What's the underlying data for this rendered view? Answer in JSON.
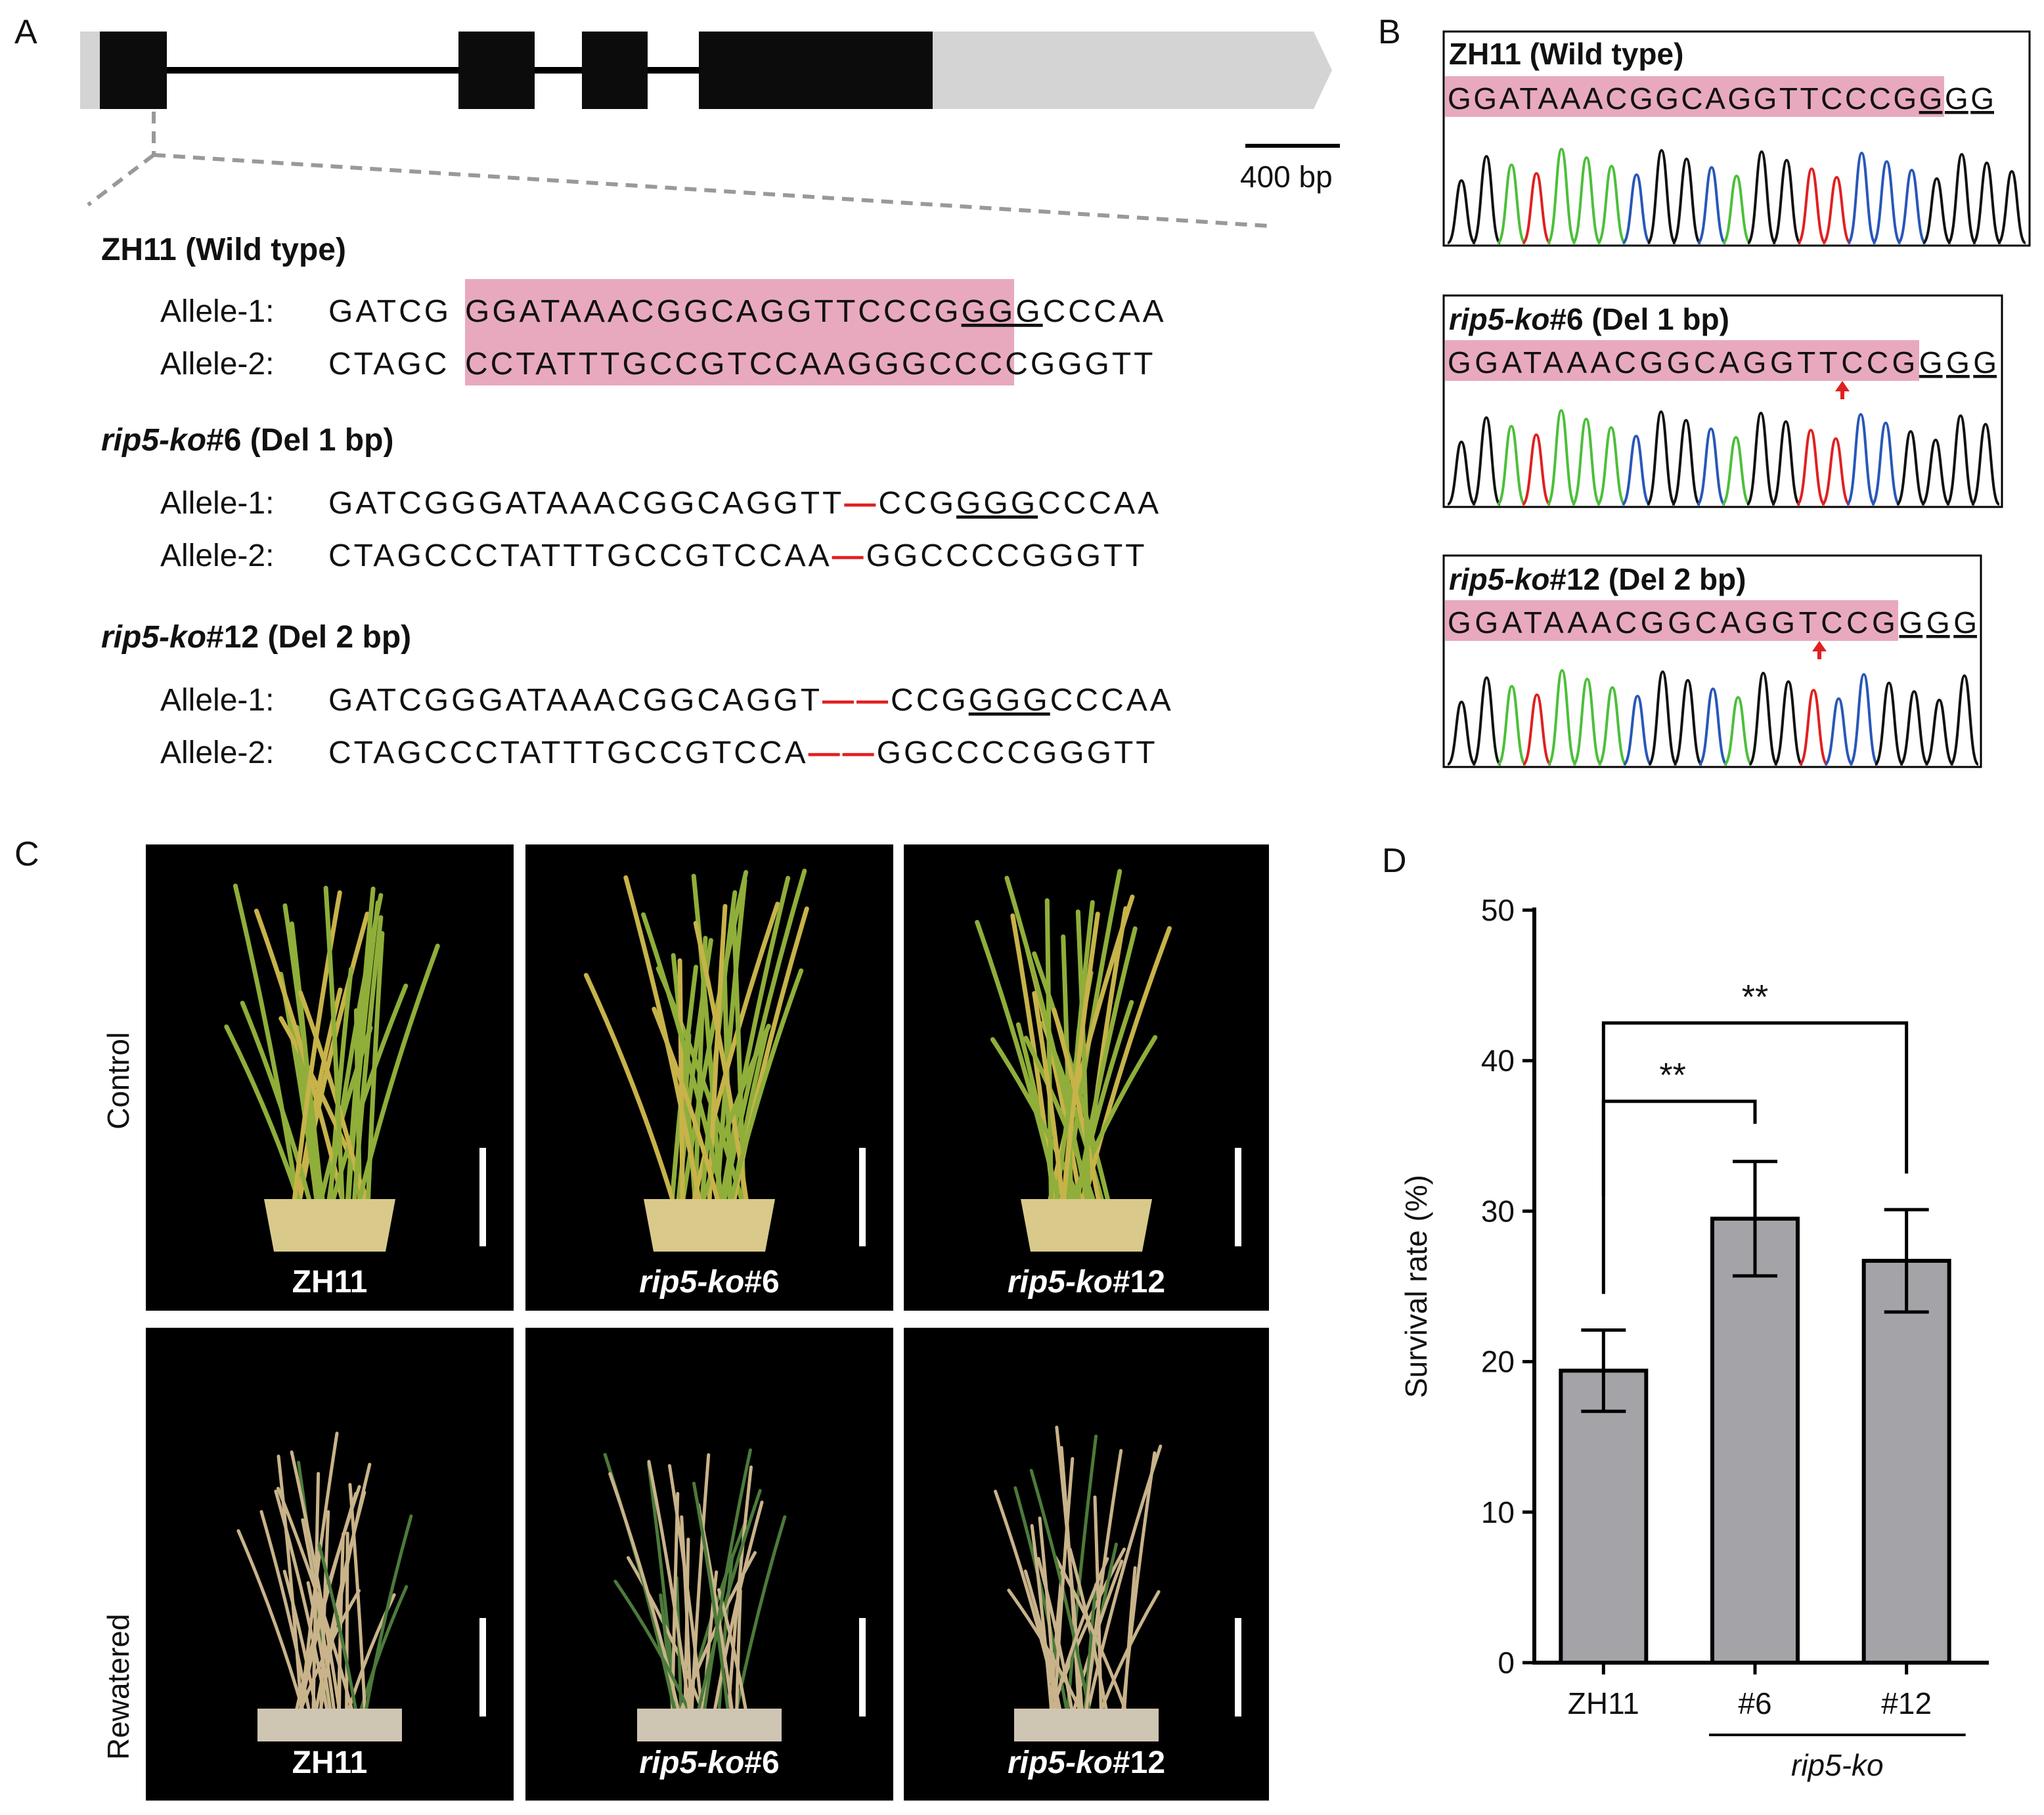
{
  "panel_labels": {
    "a": "A",
    "b": "B",
    "c": "C",
    "d": "D"
  },
  "panel_a": {
    "scale_bar_label": "400 bp",
    "wt_title": "ZH11 (Wild type)",
    "ko6": {
      "italic": "rip5-ko",
      "plain": "#6 (Del 1 bp)"
    },
    "ko12": {
      "italic": "rip5-ko",
      "plain": "#12 (Del 2 bp)"
    },
    "allele1_label": "Allele-1:",
    "allele2_label": "Allele-2:",
    "wt_a1": {
      "pre": "GATCG",
      "hl": "GGATAAACGGCAGGTTCCCG",
      "pam": "GGG",
      "post": "CCCAA"
    },
    "wt_a2": {
      "pre": "CTAGC",
      "hl": "CCTATTTGCCGTCCAAGGGC",
      "post": "CCCGGGTT"
    },
    "ko6_a1": {
      "pre": "GATCGGGATAAACGGCAGGTT",
      "dash": "—",
      "mid": "CCG",
      "pam": "GGG",
      "post": "CCCAA"
    },
    "ko6_a2": {
      "pre": "CTAGCCCTATTTGCCGTCCAA",
      "dash": "—",
      "post": "GGCCCCGGGTT"
    },
    "ko12_a1": {
      "pre": "GATCGGGATAAACGGCAGGT",
      "dash": "——",
      "mid": "CCG",
      "pam": "GGG",
      "post": "CCCAA"
    },
    "ko12_a2": {
      "pre": "CTAGCCCTATTTGCCGTCCA",
      "dash": "——",
      "post": "GGCCCCGGGTT"
    }
  },
  "panel_b": {
    "wt": {
      "title": "ZH11 (Wild type)",
      "hl": "GGATAAACGGCAGGTTCCCG",
      "pam": "GGG"
    },
    "ko6": {
      "italic": "rip5-ko",
      "plain": "#6 (Del 1 bp)",
      "hl": "GGATAAACGGCAGGTTCCG",
      "pam": "GGG"
    },
    "ko12": {
      "italic": "rip5-ko",
      "plain": "#12 (Del 2 bp)",
      "hl": "GGATAAACGGCAGGTCCG",
      "pam": "GGG"
    }
  },
  "panel_c": {
    "row_labels": [
      "Control",
      "Rewatered"
    ],
    "captions": {
      "zh11": "ZH11",
      "ko_italic": "rip5-ko",
      "ko6_num": "#6",
      "ko12_num": "#12"
    }
  },
  "colors": {
    "highlight": "#e8a9bf",
    "deletion": "#e02020",
    "bar": "#a3a3a8",
    "trace_g": "#111111",
    "trace_a": "#4cbf3a",
    "trace_t": "#e02020",
    "trace_c": "#2857b8"
  },
  "chart_data": {
    "type": "bar",
    "categories": [
      "ZH11",
      "#6",
      "#12"
    ],
    "values": [
      19.4,
      29.5,
      26.7
    ],
    "errors": [
      2.7,
      3.8,
      3.4
    ],
    "ylabel": "Survival rate (%)",
    "xlabel": "",
    "group_label": "rip5-ko",
    "ylim": [
      0,
      50
    ],
    "yticks": [
      0,
      10,
      20,
      30,
      40,
      50
    ],
    "significance": [
      {
        "from": "ZH11",
        "to": "#6",
        "label": "**"
      },
      {
        "from": "ZH11",
        "to": "#12",
        "label": "**"
      }
    ],
    "grid": false
  }
}
